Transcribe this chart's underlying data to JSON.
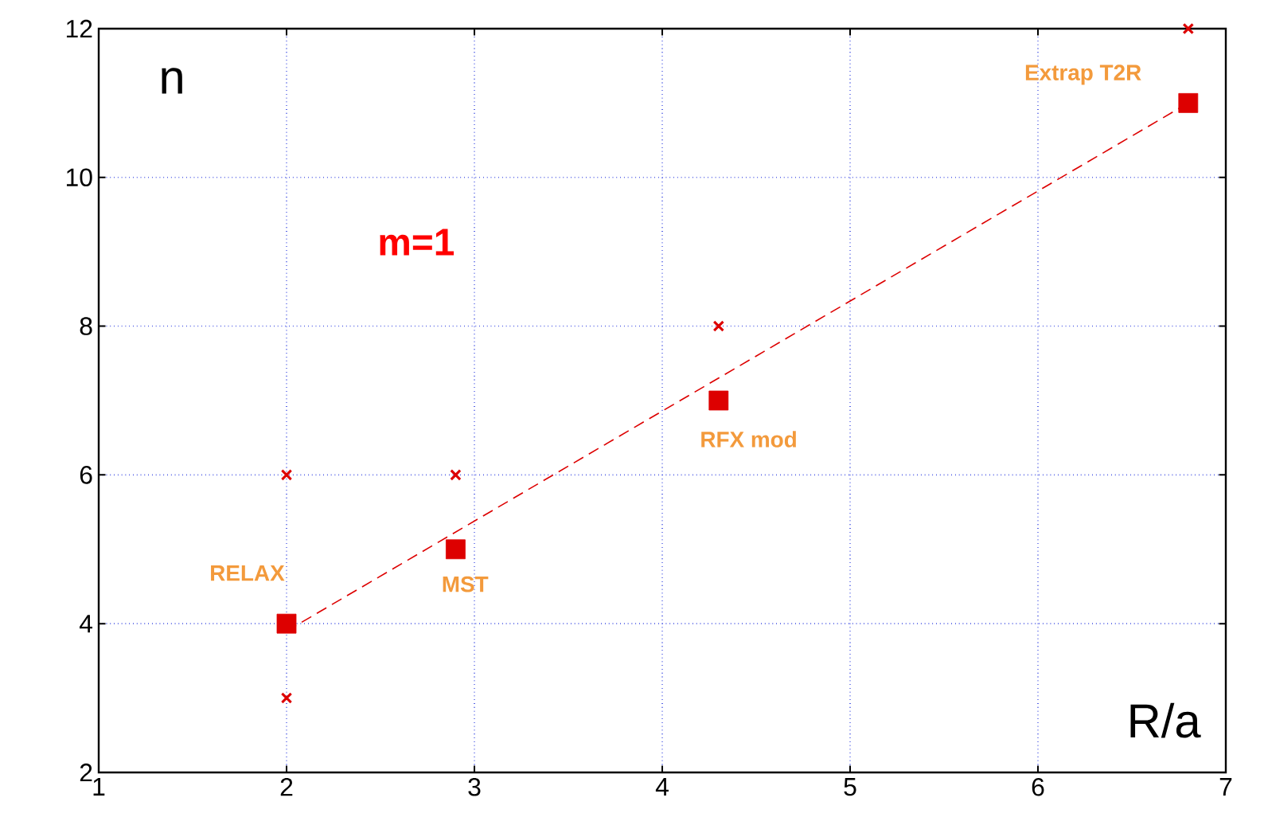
{
  "chart_data": {
    "type": "scatter",
    "xlabel": "R/a",
    "ylabel": "n",
    "xlim": [
      1,
      7
    ],
    "ylim": [
      2,
      12
    ],
    "xticks": [
      1,
      2,
      3,
      4,
      5,
      6,
      7
    ],
    "yticks": [
      2,
      4,
      6,
      8,
      10,
      12
    ],
    "grid": true,
    "series": [
      {
        "marker": "square",
        "color": "#dd0000",
        "x": [
          2,
          2.9,
          4.3,
          6.8
        ],
        "values": [
          4,
          5,
          7,
          11
        ]
      },
      {
        "marker": "cross",
        "color": "#dd0000",
        "x": [
          2,
          2,
          2.9,
          4.3,
          6.8
        ],
        "values": [
          6,
          3,
          6,
          8,
          12
        ]
      },
      {
        "type": "line",
        "marker": "none",
        "line_style": "dashed",
        "color": "#dd0000",
        "x": [
          2,
          6.8
        ],
        "values": [
          3.9,
          11
        ]
      }
    ],
    "annotations": [
      "RELAX",
      "MST",
      "RFX mod",
      "Extrap T2R",
      "m=1"
    ]
  }
}
